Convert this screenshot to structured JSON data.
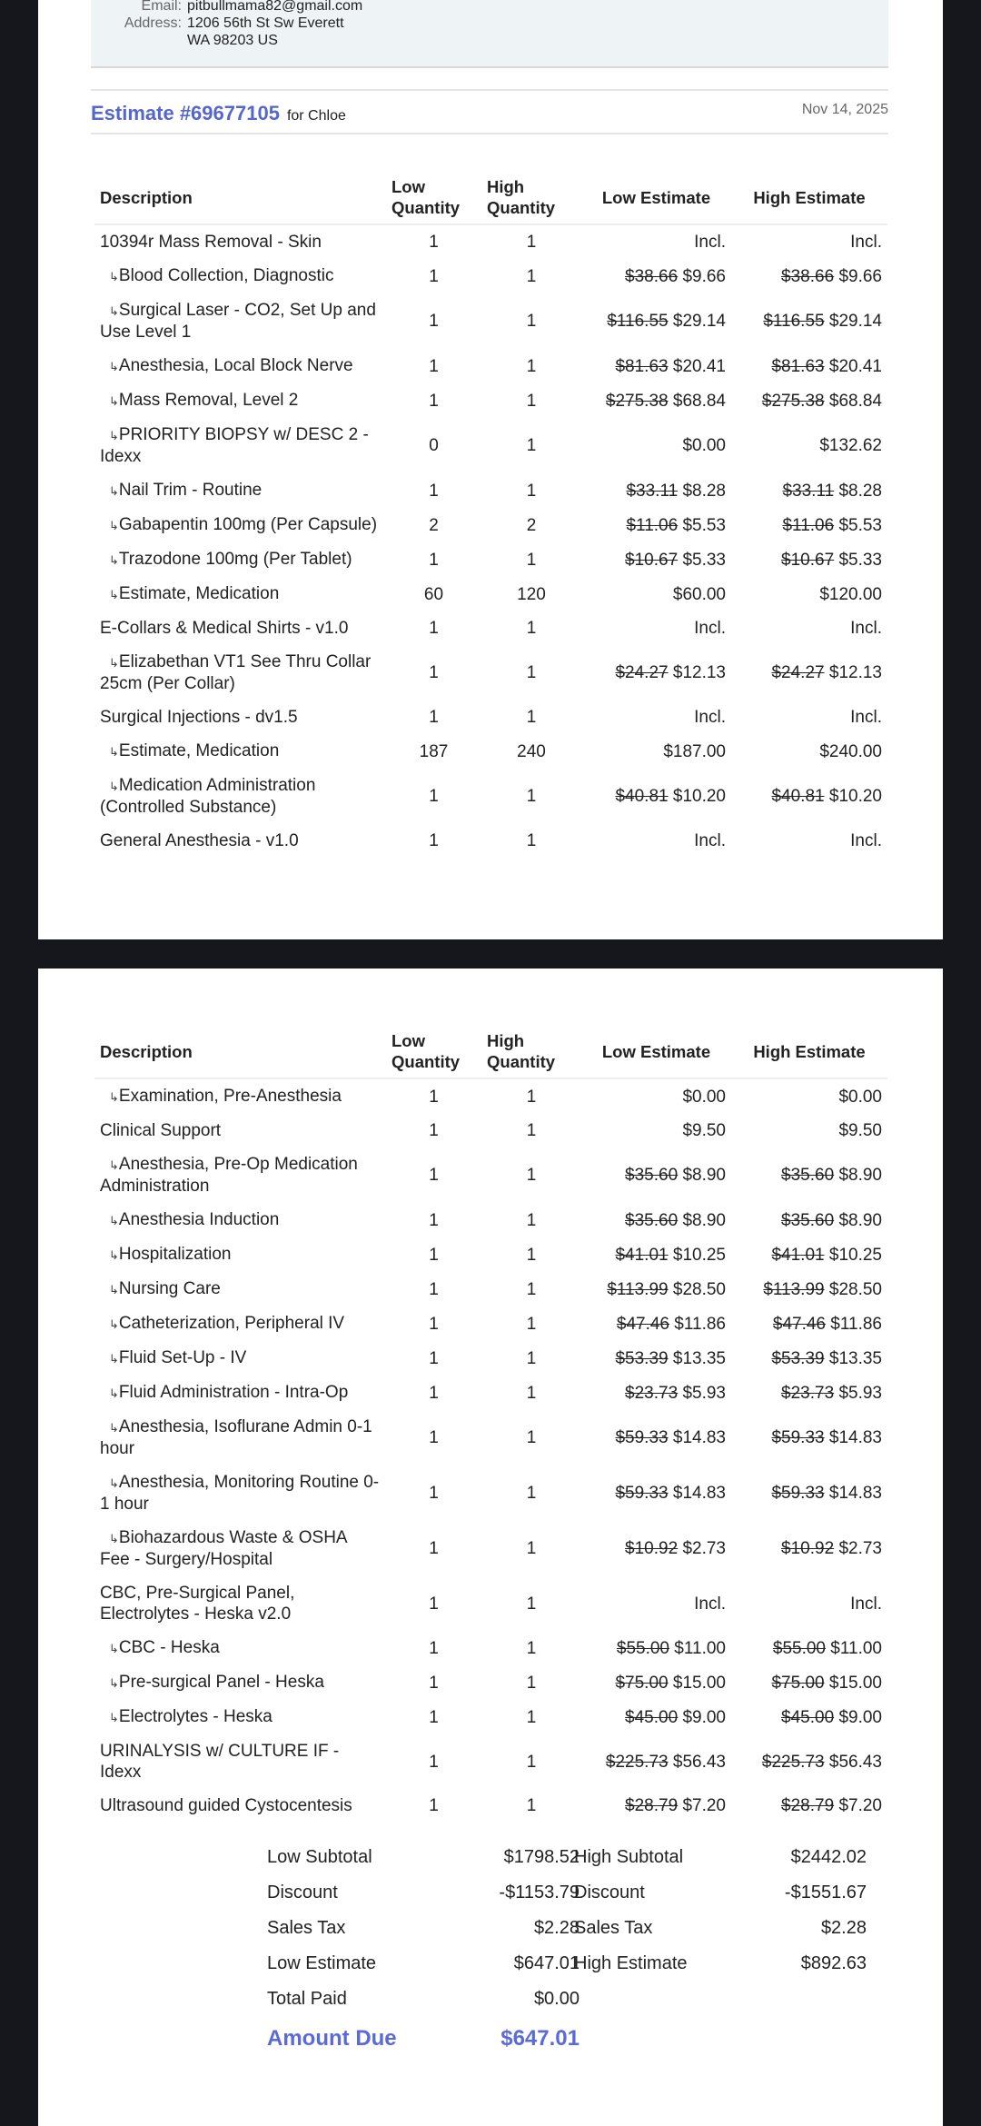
{
  "client": {
    "email_label": "Email:",
    "email": "pitbullmama82@gmail.com",
    "address_label": "Address:",
    "address_line1": "1206 56th St Sw Everett",
    "address_line2": "WA 98203 US"
  },
  "estimate": {
    "title": "Estimate #69677105",
    "for": "for Chloe",
    "date": "Nov 14, 2025",
    "accent": "#5566cc"
  },
  "columns": [
    "Description",
    "Low Quantity",
    "High Quantity",
    "Low Estimate",
    "High Estimate"
  ],
  "page1_rows": [
    {
      "d": "10394r Mass Removal - Skin",
      "sub": false,
      "lq": "1",
      "hq": "1",
      "lo": "",
      "l": "Incl.",
      "ho": "",
      "h": "Incl."
    },
    {
      "d": "Blood Collection, Diagnostic",
      "sub": true,
      "lq": "1",
      "hq": "1",
      "lo": "$38.66",
      "l": "$9.66",
      "ho": "$38.66",
      "h": "$9.66"
    },
    {
      "d": "Surgical Laser - CO2, Set Up and Use Level 1",
      "sub": true,
      "lq": "1",
      "hq": "1",
      "lo": "$116.55",
      "l": "$29.14",
      "ho": "$116.55",
      "h": "$29.14"
    },
    {
      "d": "Anesthesia, Local Block Nerve",
      "sub": true,
      "lq": "1",
      "hq": "1",
      "lo": "$81.63",
      "l": "$20.41",
      "ho": "$81.63",
      "h": "$20.41"
    },
    {
      "d": "Mass Removal, Level 2",
      "sub": true,
      "lq": "1",
      "hq": "1",
      "lo": "$275.38",
      "l": "$68.84",
      "ho": "$275.38",
      "h": "$68.84"
    },
    {
      "d": "PRIORITY BIOPSY w/ DESC 2 - Idexx",
      "sub": true,
      "lq": "0",
      "hq": "1",
      "lo": "",
      "l": "$0.00",
      "ho": "",
      "h": "$132.62"
    },
    {
      "d": "Nail Trim - Routine",
      "sub": true,
      "lq": "1",
      "hq": "1",
      "lo": "$33.11",
      "l": "$8.28",
      "ho": "$33.11",
      "h": "$8.28"
    },
    {
      "d": "Gabapentin 100mg (Per Capsule)",
      "sub": true,
      "lq": "2",
      "hq": "2",
      "lo": "$11.06",
      "l": "$5.53",
      "ho": "$11.06",
      "h": "$5.53"
    },
    {
      "d": "Trazodone 100mg (Per Tablet)",
      "sub": true,
      "lq": "1",
      "hq": "1",
      "lo": "$10.67",
      "l": "$5.33",
      "ho": "$10.67",
      "h": "$5.33"
    },
    {
      "d": "Estimate, Medication",
      "sub": true,
      "lq": "60",
      "hq": "120",
      "lo": "",
      "l": "$60.00",
      "ho": "",
      "h": "$120.00"
    },
    {
      "d": "E-Collars & Medical Shirts - v1.0",
      "sub": false,
      "lq": "1",
      "hq": "1",
      "lo": "",
      "l": "Incl.",
      "ho": "",
      "h": "Incl."
    },
    {
      "d": "Elizabethan VT1 See Thru Collar 25cm (Per Collar)",
      "sub": true,
      "lq": "1",
      "hq": "1",
      "lo": "$24.27",
      "l": "$12.13",
      "ho": "$24.27",
      "h": "$12.13"
    },
    {
      "d": "Surgical Injections - dv1.5",
      "sub": false,
      "lq": "1",
      "hq": "1",
      "lo": "",
      "l": "Incl.",
      "ho": "",
      "h": "Incl."
    },
    {
      "d": "Estimate, Medication",
      "sub": true,
      "lq": "187",
      "hq": "240",
      "lo": "",
      "l": "$187.00",
      "ho": "",
      "h": "$240.00"
    },
    {
      "d": "Medication Administration (Controlled Substance)",
      "sub": true,
      "lq": "1",
      "hq": "1",
      "lo": "$40.81",
      "l": "$10.20",
      "ho": "$40.81",
      "h": "$10.20"
    },
    {
      "d": "General Anesthesia - v1.0",
      "sub": false,
      "lq": "1",
      "hq": "1",
      "lo": "",
      "l": "Incl.",
      "ho": "",
      "h": "Incl."
    }
  ],
  "page2_rows": [
    {
      "d": "Examination, Pre-Anesthesia",
      "sub": true,
      "lq": "1",
      "hq": "1",
      "lo": "",
      "l": "$0.00",
      "ho": "",
      "h": "$0.00"
    },
    {
      "d": "Clinical Support",
      "sub": false,
      "lq": "1",
      "hq": "1",
      "lo": "",
      "l": "$9.50",
      "ho": "",
      "h": "$9.50"
    },
    {
      "d": "Anesthesia, Pre-Op Medication Administration",
      "sub": true,
      "lq": "1",
      "hq": "1",
      "lo": "$35.60",
      "l": "$8.90",
      "ho": "$35.60",
      "h": "$8.90"
    },
    {
      "d": "Anesthesia Induction",
      "sub": true,
      "lq": "1",
      "hq": "1",
      "lo": "$35.60",
      "l": "$8.90",
      "ho": "$35.60",
      "h": "$8.90"
    },
    {
      "d": "Hospitalization",
      "sub": true,
      "lq": "1",
      "hq": "1",
      "lo": "$41.01",
      "l": "$10.25",
      "ho": "$41.01",
      "h": "$10.25"
    },
    {
      "d": "Nursing Care",
      "sub": true,
      "lq": "1",
      "hq": "1",
      "lo": "$113.99",
      "l": "$28.50",
      "ho": "$113.99",
      "h": "$28.50"
    },
    {
      "d": "Catheterization, Peripheral IV",
      "sub": true,
      "lq": "1",
      "hq": "1",
      "lo": "$47.46",
      "l": "$11.86",
      "ho": "$47.46",
      "h": "$11.86"
    },
    {
      "d": "Fluid Set-Up - IV",
      "sub": true,
      "lq": "1",
      "hq": "1",
      "lo": "$53.39",
      "l": "$13.35",
      "ho": "$53.39",
      "h": "$13.35"
    },
    {
      "d": "Fluid Administration - Intra-Op",
      "sub": true,
      "lq": "1",
      "hq": "1",
      "lo": "$23.73",
      "l": "$5.93",
      "ho": "$23.73",
      "h": "$5.93"
    },
    {
      "d": "Anesthesia, Isoflurane Admin 0-1 hour",
      "sub": true,
      "lq": "1",
      "hq": "1",
      "lo": "$59.33",
      "l": "$14.83",
      "ho": "$59.33",
      "h": "$14.83"
    },
    {
      "d": "Anesthesia, Monitoring Routine 0-1 hour",
      "sub": true,
      "lq": "1",
      "hq": "1",
      "lo": "$59.33",
      "l": "$14.83",
      "ho": "$59.33",
      "h": "$14.83"
    },
    {
      "d": "Biohazardous Waste & OSHA Fee - Surgery/Hospital",
      "sub": true,
      "lq": "1",
      "hq": "1",
      "lo": "$10.92",
      "l": "$2.73",
      "ho": "$10.92",
      "h": "$2.73"
    },
    {
      "d": "CBC, Pre-Surgical Panel, Electrolytes - Heska v2.0",
      "sub": false,
      "lq": "1",
      "hq": "1",
      "lo": "",
      "l": "Incl.",
      "ho": "",
      "h": "Incl."
    },
    {
      "d": "CBC - Heska",
      "sub": true,
      "lq": "1",
      "hq": "1",
      "lo": "$55.00",
      "l": "$11.00",
      "ho": "$55.00",
      "h": "$11.00"
    },
    {
      "d": "Pre-surgical Panel - Heska",
      "sub": true,
      "lq": "1",
      "hq": "1",
      "lo": "$75.00",
      "l": "$15.00",
      "ho": "$75.00",
      "h": "$15.00"
    },
    {
      "d": "Electrolytes - Heska",
      "sub": true,
      "lq": "1",
      "hq": "1",
      "lo": "$45.00",
      "l": "$9.00",
      "ho": "$45.00",
      "h": "$9.00"
    },
    {
      "d": "URINALYSIS w/ CULTURE IF - Idexx",
      "sub": false,
      "lq": "1",
      "hq": "1",
      "lo": "$225.73",
      "l": "$56.43",
      "ho": "$225.73",
      "h": "$56.43"
    },
    {
      "d": "Ultrasound guided Cystocentesis",
      "sub": false,
      "lq": "1",
      "hq": "1",
      "lo": "$28.79",
      "l": "$7.20",
      "ho": "$28.79",
      "h": "$7.20"
    }
  ],
  "totals": {
    "low": [
      [
        "Low Subtotal",
        "$1798.52"
      ],
      [
        "Discount",
        "-$1153.79"
      ],
      [
        "Sales Tax",
        "$2.28"
      ],
      [
        "Low Estimate",
        "$647.01"
      ],
      [
        "Total Paid",
        "$0.00"
      ]
    ],
    "high": [
      [
        "High Subtotal",
        "$2442.02"
      ],
      [
        "Discount",
        "-$1551.67"
      ],
      [
        "Sales Tax",
        "$2.28"
      ],
      [
        "High Estimate",
        "$892.63"
      ]
    ],
    "amount_due_label": "Amount Due",
    "amount_due": "$647.01"
  }
}
